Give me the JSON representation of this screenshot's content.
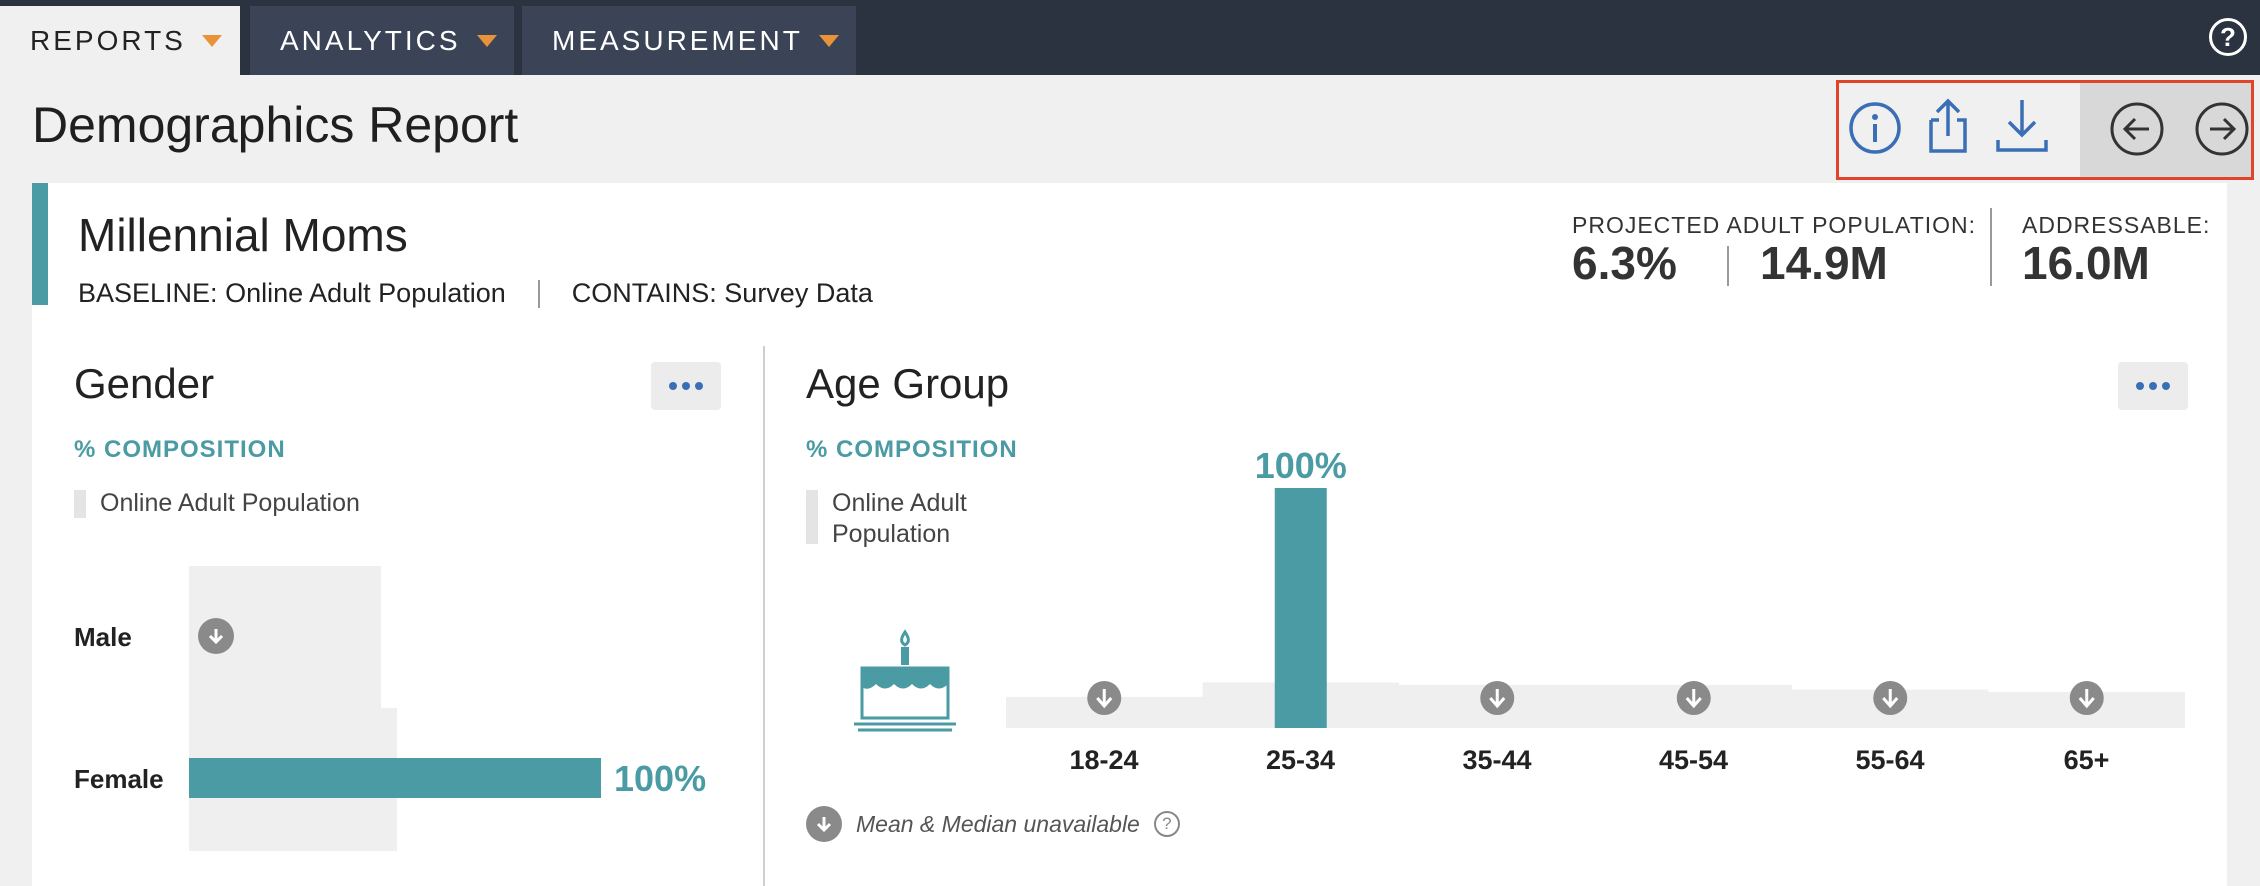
{
  "nav": {
    "tabs": [
      {
        "label": "REPORTS",
        "active": true
      },
      {
        "label": "ANALYTICS",
        "active": false
      },
      {
        "label": "MEASUREMENT",
        "active": false
      }
    ],
    "help_icon": "help-circle-icon",
    "help_glyph": "?"
  },
  "page": {
    "title": "Demographics Report"
  },
  "toolbar": {
    "icons": [
      "info-icon",
      "share-icon",
      "download-icon",
      "arrow-left-icon",
      "arrow-right-icon"
    ],
    "highlight_color": "#e0452b"
  },
  "segment": {
    "name": "Millennial Moms",
    "baseline": "BASELINE: Online Adult Population",
    "contains": "CONTAINS: Survey Data"
  },
  "stats": {
    "projected_label": "PROJECTED ADULT POPULATION:",
    "projected_pct": "6.3%",
    "projected_count": "14.9M",
    "addressable_label": "ADDRESSABLE:",
    "addressable_value": "16.0M"
  },
  "colors": {
    "accent": "#4a9ba3",
    "baseline_bar": "#efefef",
    "link": "#3a6fb5"
  },
  "gender": {
    "title": "Gender",
    "composition_label": "% COMPOSITION",
    "legend": "Online Adult Population",
    "more_icon": "more-icon",
    "rows": [
      {
        "label": "Male",
        "value": null,
        "baseline": 0.48,
        "unavailable_icon": "arrow-down-circle-icon"
      },
      {
        "label": "Female",
        "value": 100,
        "value_label": "100%",
        "baseline": 0.52
      }
    ]
  },
  "age": {
    "title": "Age Group",
    "composition_label": "% COMPOSITION",
    "legend": "Online Adult Population",
    "more_icon": "more-icon",
    "illustration_icon": "birthday-cake-icon",
    "footnote": "Mean & Median unavailable",
    "footnote_icon": "arrow-down-circle-icon",
    "footnote_help_icon": "question-icon",
    "footnote_help_glyph": "?"
  },
  "chart_data": {
    "type": "bar",
    "categories": [
      "18-24",
      "25-34",
      "35-44",
      "45-54",
      "55-64",
      "65+"
    ],
    "series": [
      {
        "name": "Millennial Moms",
        "values": [
          null,
          100,
          null,
          null,
          null,
          null
        ]
      },
      {
        "name": "Online Adult Population",
        "values": [
          13,
          19,
          18,
          18,
          16,
          15
        ]
      }
    ],
    "data_labels": [
      "",
      "100%",
      "",
      "",
      "",
      ""
    ],
    "ylim": [
      0,
      100
    ],
    "unavailable_marker": "arrow-down-circle-icon",
    "title": "Age Group",
    "xlabel": "",
    "ylabel": "% COMPOSITION"
  }
}
